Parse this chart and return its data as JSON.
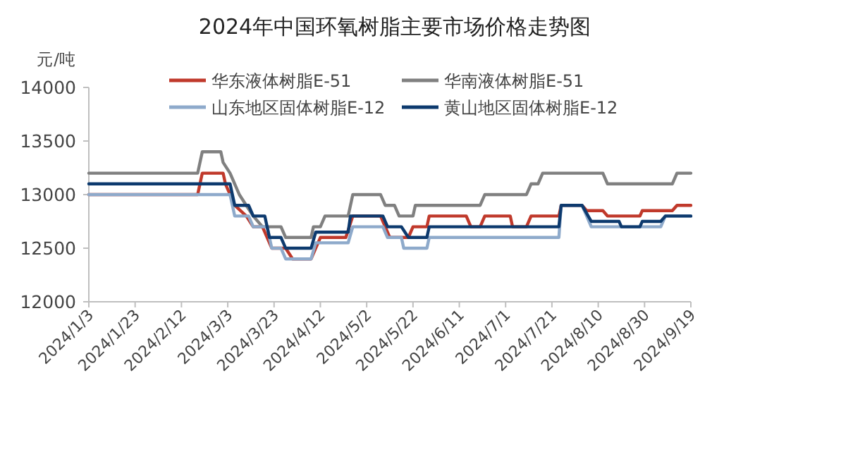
{
  "chart_data": {
    "type": "line",
    "title": "2024年中国环氧树脂主要市场价格走势图",
    "ylabel": "元/吨",
    "xlim": [
      "2024-01-03",
      "2024-09-19"
    ],
    "xticks": [
      {
        "value": "2024-01-03",
        "label": "2024/1/3"
      },
      {
        "value": "2024-01-23",
        "label": "2024/1/23"
      },
      {
        "value": "2024-02-12",
        "label": "2024/2/12"
      },
      {
        "value": "2024-03-03",
        "label": "2024/3/3"
      },
      {
        "value": "2024-03-23",
        "label": "2024/3/23"
      },
      {
        "value": "2024-04-12",
        "label": "2024/4/12"
      },
      {
        "value": "2024-05-02",
        "label": "2024/5/2"
      },
      {
        "value": "2024-05-22",
        "label": "2024/5/22"
      },
      {
        "value": "2024-06-11",
        "label": "2024/6/11"
      },
      {
        "value": "2024-07-01",
        "label": "2024/7/1"
      },
      {
        "value": "2024-07-21",
        "label": "2024/7/21"
      },
      {
        "value": "2024-08-10",
        "label": "2024/8/10"
      },
      {
        "value": "2024-08-30",
        "label": "2024/8/30"
      },
      {
        "value": "2024-09-19",
        "label": "2024/9/19"
      }
    ],
    "ylim": [
      12000,
      14000
    ],
    "yticks": [
      12000,
      12500,
      13000,
      13500,
      14000
    ],
    "legend": "top",
    "grid": false,
    "marker": "none",
    "line_style": "solid",
    "series": [
      {
        "name": "华东液体树脂E-51",
        "color": "#c0392b",
        "x": [
          "2024-01-03",
          "2024-02-19",
          "2024-02-21",
          "2024-03-01",
          "2024-03-02",
          "2024-03-04",
          "2024-03-06",
          "2024-03-11",
          "2024-03-14",
          "2024-03-18",
          "2024-03-22",
          "2024-03-28",
          "2024-03-31",
          "2024-04-08",
          "2024-04-10",
          "2024-04-12",
          "2024-04-23",
          "2024-04-26",
          "2024-05-08",
          "2024-05-10",
          "2024-05-12",
          "2024-05-20",
          "2024-05-22",
          "2024-05-28",
          "2024-05-29",
          "2024-06-14",
          "2024-06-16",
          "2024-06-20",
          "2024-06-22",
          "2024-07-03",
          "2024-07-04",
          "2024-07-10",
          "2024-07-12",
          "2024-07-24",
          "2024-07-25",
          "2024-08-03",
          "2024-08-05",
          "2024-08-12",
          "2024-08-14",
          "2024-08-28",
          "2024-08-29",
          "2024-09-11",
          "2024-09-13",
          "2024-09-19"
        ],
        "values": [
          13000,
          13000,
          13200,
          13200,
          13100,
          13000,
          12900,
          12800,
          12700,
          12700,
          12500,
          12500,
          12400,
          12400,
          12500,
          12600,
          12600,
          12800,
          12800,
          12700,
          12600,
          12600,
          12700,
          12700,
          12800,
          12800,
          12700,
          12700,
          12800,
          12800,
          12700,
          12700,
          12800,
          12800,
          12900,
          12900,
          12850,
          12850,
          12800,
          12800,
          12850,
          12850,
          12900,
          12900
        ]
      },
      {
        "name": "华南液体树脂E-51",
        "color": "#808080",
        "x": [
          "2024-01-03",
          "2024-02-19",
          "2024-02-21",
          "2024-02-29",
          "2024-03-01",
          "2024-03-04",
          "2024-03-06",
          "2024-03-08",
          "2024-03-11",
          "2024-03-14",
          "2024-03-18",
          "2024-03-26",
          "2024-03-28",
          "2024-04-08",
          "2024-04-09",
          "2024-04-12",
          "2024-04-14",
          "2024-04-24",
          "2024-04-26",
          "2024-05-08",
          "2024-05-10",
          "2024-05-14",
          "2024-05-16",
          "2024-05-22",
          "2024-05-23",
          "2024-06-20",
          "2024-06-22",
          "2024-07-10",
          "2024-07-12",
          "2024-07-15",
          "2024-07-17",
          "2024-08-12",
          "2024-08-14",
          "2024-09-11",
          "2024-09-13",
          "2024-09-19"
        ],
        "values": [
          13200,
          13200,
          13400,
          13400,
          13300,
          13200,
          13100,
          13000,
          12900,
          12800,
          12700,
          12700,
          12600,
          12600,
          12700,
          12700,
          12800,
          12800,
          13000,
          13000,
          12900,
          12900,
          12800,
          12800,
          12900,
          12900,
          13000,
          13000,
          13100,
          13100,
          13200,
          13200,
          13100,
          13100,
          13200,
          13200
        ]
      },
      {
        "name": "山东地区固体树脂E-12",
        "color": "#8eaacb",
        "x": [
          "2024-01-03",
          "2024-03-04",
          "2024-03-06",
          "2024-03-12",
          "2024-03-14",
          "2024-03-20",
          "2024-03-22",
          "2024-03-26",
          "2024-03-28",
          "2024-04-08",
          "2024-04-10",
          "2024-04-24",
          "2024-04-26",
          "2024-05-09",
          "2024-05-11",
          "2024-05-17",
          "2024-05-18",
          "2024-05-28",
          "2024-05-29",
          "2024-07-24",
          "2024-07-25",
          "2024-08-03",
          "2024-08-07",
          "2024-09-06",
          "2024-09-08",
          "2024-09-19"
        ],
        "values": [
          13000,
          13000,
          12800,
          12800,
          12700,
          12700,
          12500,
          12500,
          12400,
          12400,
          12550,
          12550,
          12700,
          12700,
          12600,
          12600,
          12500,
          12500,
          12600,
          12600,
          12900,
          12900,
          12700,
          12700,
          12800,
          12800
        ]
      },
      {
        "name": "黄山地区固体树脂E-12",
        "color": "#0d3a6e",
        "x": [
          "2024-01-03",
          "2024-03-04",
          "2024-03-06",
          "2024-03-12",
          "2024-03-14",
          "2024-03-19",
          "2024-03-21",
          "2024-03-26",
          "2024-03-28",
          "2024-04-08",
          "2024-04-10",
          "2024-04-24",
          "2024-04-25",
          "2024-05-09",
          "2024-05-11",
          "2024-05-17",
          "2024-05-20",
          "2024-05-28",
          "2024-05-29",
          "2024-07-24",
          "2024-07-25",
          "2024-08-03",
          "2024-08-07",
          "2024-08-19",
          "2024-08-20",
          "2024-08-28",
          "2024-08-29",
          "2024-09-06",
          "2024-09-08",
          "2024-09-19"
        ],
        "values": [
          13100,
          13100,
          12900,
          12900,
          12800,
          12800,
          12600,
          12600,
          12500,
          12500,
          12650,
          12650,
          12800,
          12800,
          12700,
          12700,
          12600,
          12600,
          12700,
          12700,
          12900,
          12900,
          12750,
          12750,
          12700,
          12700,
          12750,
          12750,
          12800,
          12800
        ]
      }
    ]
  }
}
